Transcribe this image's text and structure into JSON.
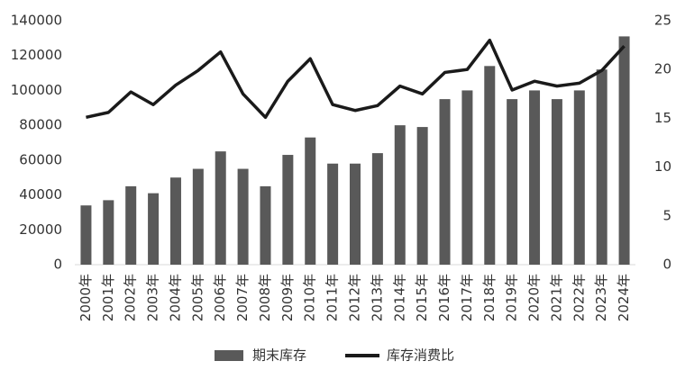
{
  "chart_data": {
    "type": "bar-line",
    "categories": [
      "2000年",
      "2001年",
      "2002年",
      "2003年",
      "2004年",
      "2005年",
      "2006年",
      "2007年",
      "2008年",
      "2009年",
      "2010年",
      "2011年",
      "2012年",
      "2013年",
      "2014年",
      "2015年",
      "2016年",
      "2017年",
      "2018年",
      "2019年",
      "2020年",
      "2021年",
      "2022年",
      "2023年",
      "2024年"
    ],
    "series": [
      {
        "name": "期末库存",
        "type": "bar",
        "color": "#595959",
        "values": [
          34000,
          37000,
          45000,
          41000,
          50000,
          55000,
          65000,
          55000,
          45000,
          63000,
          73000,
          58000,
          58000,
          64000,
          80000,
          79000,
          95000,
          100000,
          114000,
          95000,
          100000,
          95000,
          100000,
          112000,
          131000
        ]
      },
      {
        "name": "库存消费比",
        "type": "line",
        "axis": "y2",
        "color": "#1a1a1a",
        "values": [
          15.1,
          15.6,
          17.7,
          16.4,
          18.4,
          19.9,
          21.8,
          17.5,
          15.1,
          18.8,
          21.1,
          16.4,
          15.8,
          16.3,
          18.3,
          17.5,
          19.7,
          20.0,
          23.0,
          17.9,
          18.8,
          18.3,
          18.6,
          19.9,
          22.4
        ]
      }
    ],
    "ylim": [
      0,
      140000
    ],
    "yticks": [
      0,
      20000,
      40000,
      60000,
      80000,
      100000,
      120000,
      140000
    ],
    "y2lim": [
      0,
      25
    ],
    "y2ticks": [
      0,
      5,
      10,
      15,
      20,
      25
    ],
    "grid": false,
    "legend": "bottom"
  }
}
